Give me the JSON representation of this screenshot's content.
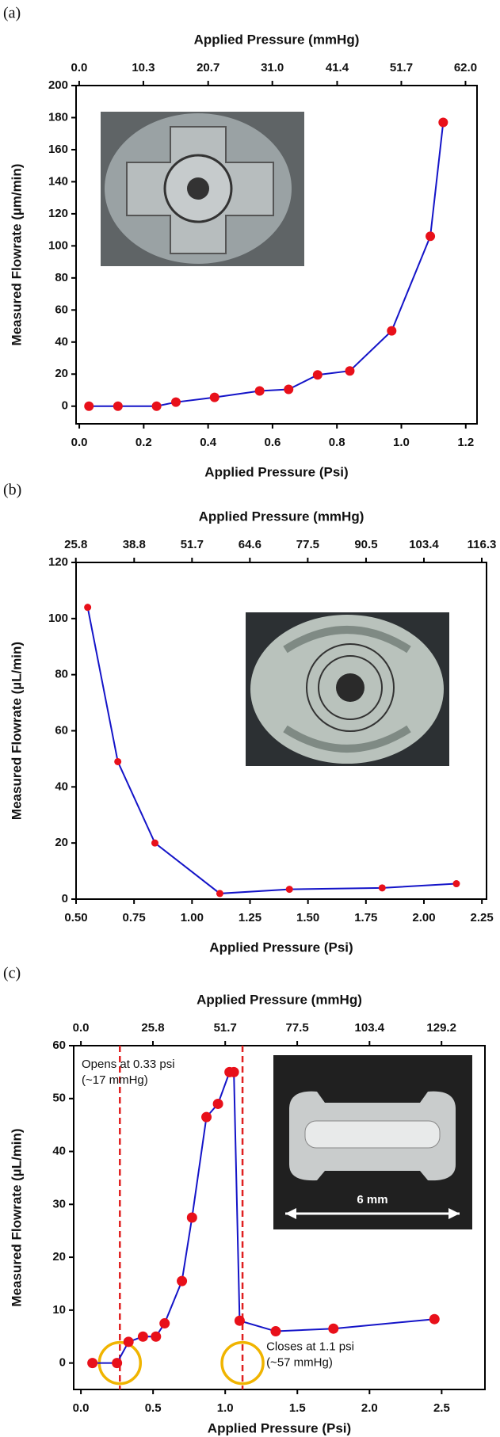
{
  "chart_data": [
    {
      "type": "line",
      "panel_label": "(a)",
      "xlabel": "Applied Pressure (Psi)",
      "x2label": "Applied Pressure (mmHg)",
      "ylabel": "Measured Flowrate (µm/min)",
      "x": [
        0.03,
        0.12,
        0.24,
        0.3,
        0.42,
        0.56,
        0.65,
        0.74,
        0.84,
        0.97,
        1.09,
        1.13
      ],
      "values": [
        0,
        0,
        0,
        2.5,
        5.5,
        9.5,
        10.5,
        19.5,
        22,
        47,
        106,
        177
      ],
      "color": "#1414c8",
      "marker_color": "#e8101a",
      "xlim": [
        -0.01,
        1.235
      ],
      "xticks": [
        {
          "value": 0,
          "label": "0.0"
        },
        0.2,
        0.4,
        0.6,
        0.8,
        {
          "value": 1,
          "label": "1.0"
        },
        1.2
      ],
      "x2lim": [
        -0.5,
        63.85
      ],
      "x2ticks": [
        {
          "value": 0,
          "label": "0.0"
        },
        10.3,
        20.7,
        {
          "value": 31,
          "label": "31.0"
        },
        41.4,
        51.7,
        {
          "value": 62,
          "label": "62.0"
        }
      ],
      "ylim": [
        -11,
        200
      ],
      "yticks": [
        0,
        20,
        40,
        60,
        80,
        100,
        120,
        140,
        160,
        180,
        200
      ]
    },
    {
      "type": "line",
      "panel_label": "(b)",
      "xlabel": "Applied Pressure (Psi)",
      "x2label": "Applied Pressure (mmHg)",
      "ylabel": "Measured Flowrate (µL/min)",
      "x": [
        0.55,
        0.68,
        0.84,
        1.12,
        1.42,
        1.82,
        2.14
      ],
      "values": [
        104,
        49,
        20,
        2,
        3.5,
        4,
        5.5
      ],
      "color": "#1414c8",
      "marker_color": "#e8101a",
      "xlim": [
        0.5,
        2.27
      ],
      "xticks": [
        {
          "value": 0.5,
          "label": "0.50"
        },
        0.75,
        {
          "value": 1,
          "label": "1.00"
        },
        1.25,
        {
          "value": 1.5,
          "label": "1.50"
        },
        1.75,
        {
          "value": 2,
          "label": "2.00"
        },
        2.25
      ],
      "x2lim": [
        25.85,
        117.36
      ],
      "x2ticks": [
        25.8,
        38.8,
        51.7,
        64.6,
        77.5,
        90.5,
        103.4,
        116.3
      ],
      "ylim": [
        0,
        120
      ],
      "yticks": [
        0,
        20,
        40,
        60,
        80,
        100,
        120
      ]
    },
    {
      "type": "line",
      "panel_label": "(c)",
      "xlabel": "Applied Pressure (Psi)",
      "x2label": "Applied Pressure (mmHg)",
      "ylabel": "Measured Flowrate (µL/min)",
      "x": [
        0.08,
        0.25,
        0.33,
        0.43,
        0.52,
        0.58,
        0.7,
        0.77,
        0.87,
        0.95,
        1.03,
        1.06,
        1.1,
        1.35,
        1.75,
        2.45
      ],
      "values": [
        0,
        0,
        4,
        5,
        5,
        7.5,
        15.5,
        27.5,
        46.5,
        49,
        55,
        55,
        8,
        6,
        6.5,
        8.3
      ],
      "color": "#1414c8",
      "marker_color": "#e8101a",
      "xlim": [
        -0.05,
        2.8
      ],
      "xticks": [
        {
          "value": 0,
          "label": "0.0"
        },
        0.5,
        {
          "value": 1,
          "label": "1.0"
        },
        1.5,
        {
          "value": 2,
          "label": "2.0"
        },
        2.5
      ],
      "x2lim": [
        -2.585,
        144.76
      ],
      "x2ticks": [
        {
          "value": 0,
          "label": "0.0"
        },
        25.8,
        51.7,
        77.5,
        103.4,
        129.2
      ],
      "ylim": [
        -5,
        60
      ],
      "yticks": [
        0,
        10,
        20,
        30,
        40,
        50,
        60
      ],
      "vlines": [
        0.27,
        1.12
      ],
      "vline_color": "#e02020",
      "highlight_color": "#f0b400",
      "annotations": [
        [
          "Opens at 0.33 psi",
          "(~17 mmHg)"
        ],
        [
          "Closes at 1.1 psi",
          "(~57 mmHg)"
        ]
      ],
      "inset_label": "6 mm"
    }
  ]
}
